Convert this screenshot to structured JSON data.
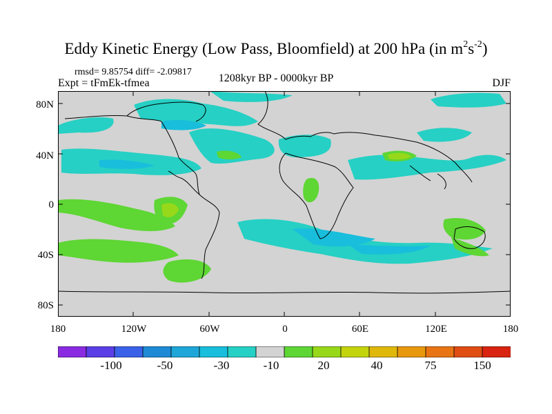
{
  "title": {
    "main": "Eddy Kinetic Energy (Low Pass, Bloomfield) at 200 hPa (in m",
    "sup1": "2",
    "mid": "s",
    "sup2": "-2",
    "end": ")"
  },
  "stats_line": "rmsd= 9.85754 diff= -2.09817",
  "experiment": "Expt = tFmEk-tfmea",
  "period": "1208kyr BP - 0000kyr BP",
  "season": "DJF",
  "axes": {
    "y_ticks": [
      "80N",
      "40N",
      "0",
      "40S",
      "80S"
    ],
    "x_ticks": [
      "180",
      "120W",
      "60W",
      "0",
      "60E",
      "120E",
      "180"
    ]
  },
  "colorbar": {
    "colors": [
      "#8a2be2",
      "#5a3ee6",
      "#3a62e8",
      "#1e8ad6",
      "#1ea6d8",
      "#18bedc",
      "#26d0c4",
      "#d3d3d3",
      "#5ed634",
      "#98d81a",
      "#c4d40c",
      "#e0b80a",
      "#e8980c",
      "#e87414",
      "#e04e14",
      "#d82410"
    ],
    "labels": [
      "-100",
      "-50",
      "-30",
      "-10",
      "20",
      "40",
      "75",
      "150"
    ]
  },
  "map_colors": {
    "land_bg": "#d3d3d3",
    "neg_10": "#26d0c4",
    "neg_30": "#18bedc",
    "pos_20": "#5ed634",
    "pos_40": "#98d81a",
    "coast": "#000000"
  }
}
